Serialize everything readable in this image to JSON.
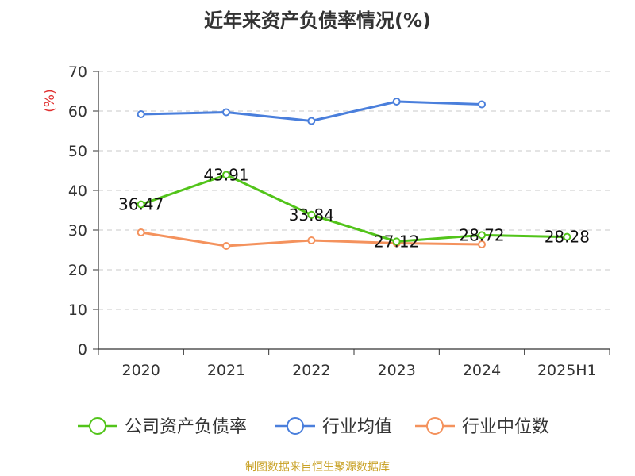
{
  "chart_data": {
    "type": "line",
    "title": "近年来资产负债率情况(%)",
    "ylabel": "(%)",
    "categories": [
      "2020",
      "2021",
      "2022",
      "2023",
      "2024",
      "2025H1"
    ],
    "ylim": [
      0,
      70
    ],
    "yticks": [
      "0",
      "10",
      "20",
      "30",
      "40",
      "50",
      "60",
      "70"
    ],
    "grid": true,
    "legend_position": "bottom",
    "series": [
      {
        "name": "公司资产负债率",
        "color": "#52c41a",
        "values": [
          36.47,
          43.91,
          33.84,
          27.12,
          28.72,
          28.28
        ],
        "labels": [
          "36.47",
          "43.91",
          "33.84",
          "27.12",
          "28.72",
          "28.28"
        ]
      },
      {
        "name": "行业均值",
        "color": "#4a7fdc",
        "values": [
          59.2,
          59.7,
          57.5,
          62.4,
          61.7,
          null
        ]
      },
      {
        "name": "行业中位数",
        "color": "#f4925d",
        "values": [
          29.4,
          26.0,
          27.4,
          26.7,
          26.4,
          null
        ]
      }
    ]
  },
  "source": {
    "text": "制图数据来自恒生聚源数据库",
    "color": "#c9a227"
  }
}
